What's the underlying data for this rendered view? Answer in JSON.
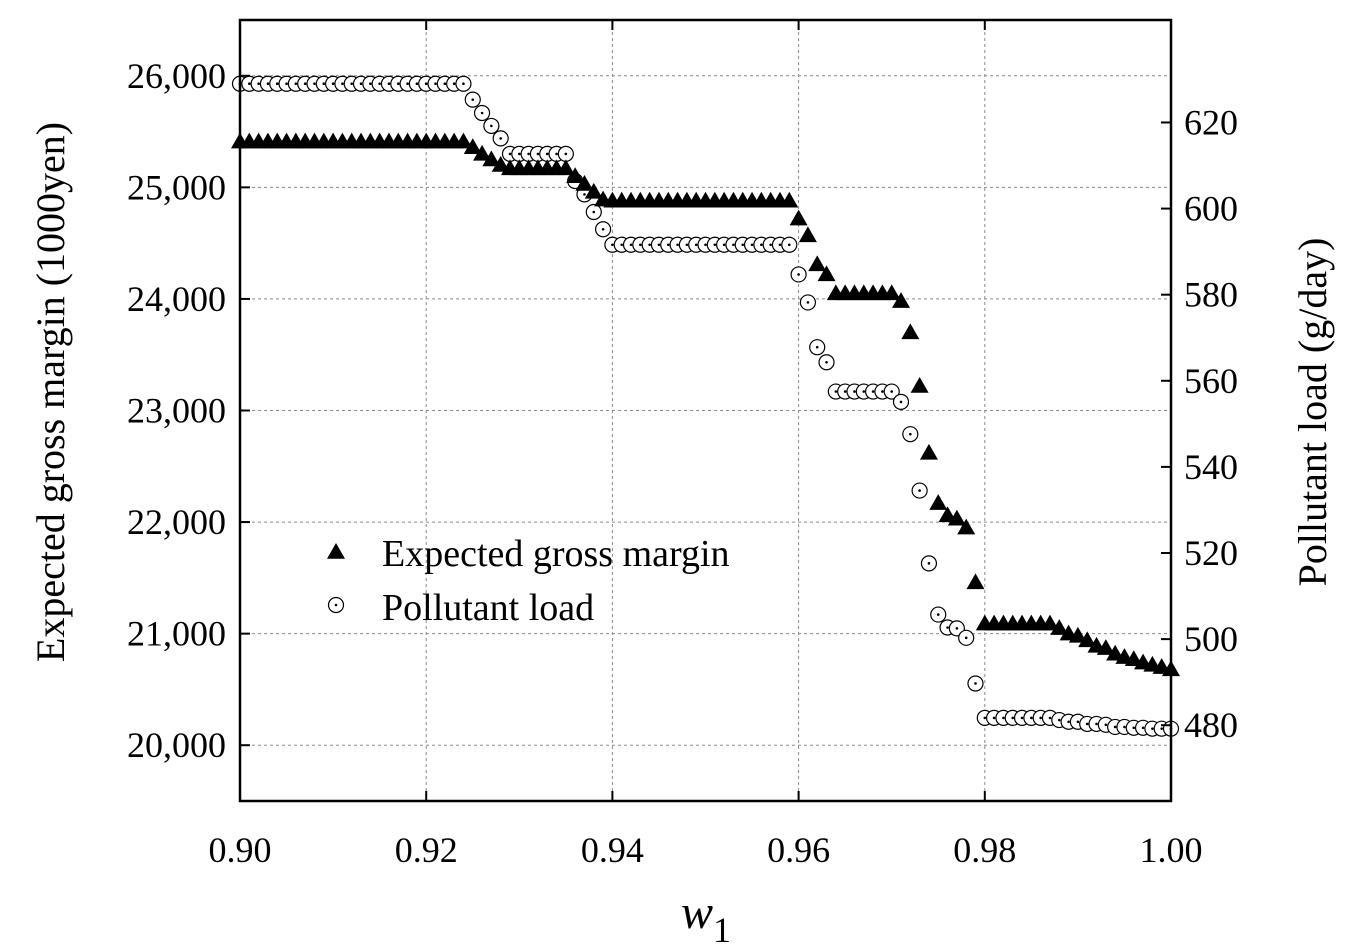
{
  "chart_data": {
    "type": "scatter",
    "xlabel": "w",
    "xlabel_subscript": "1",
    "ylabel_left": "Expected gross margin (1000yen)",
    "ylabel_right": "Pollutant load (g/day)",
    "xlim": [
      0.9,
      1.0
    ],
    "ylim_left": [
      19500,
      26500
    ],
    "ylim_right": [
      462.4,
      643.8
    ],
    "x_ticks": [
      0.9,
      0.92,
      0.94,
      0.96,
      0.98,
      1.0
    ],
    "x_tick_labels": [
      "0.90",
      "0.92",
      "0.94",
      "0.96",
      "0.98",
      "1.00"
    ],
    "y_left_ticks": [
      20000,
      21000,
      22000,
      23000,
      24000,
      25000,
      26000
    ],
    "y_left_tick_labels": [
      "20,000",
      "21,000",
      "22,000",
      "23,000",
      "24,000",
      "25,000",
      "26,000"
    ],
    "y_right_ticks": [
      480,
      500,
      520,
      540,
      560,
      580,
      600,
      620
    ],
    "y_right_tick_labels": [
      "480",
      "500",
      "520",
      "540",
      "560",
      "580",
      "600",
      "620"
    ],
    "grid": true,
    "legend_position": "lower-left",
    "series": [
      {
        "name": "Expected gross margin",
        "axis": "left",
        "marker": "filled-triangle",
        "color": "#000000",
        "points": [
          [
            0.9,
            25410
          ],
          [
            0.901,
            25410
          ],
          [
            0.902,
            25410
          ],
          [
            0.903,
            25410
          ],
          [
            0.904,
            25410
          ],
          [
            0.905,
            25410
          ],
          [
            0.906,
            25410
          ],
          [
            0.907,
            25410
          ],
          [
            0.908,
            25410
          ],
          [
            0.909,
            25410
          ],
          [
            0.91,
            25410
          ],
          [
            0.911,
            25410
          ],
          [
            0.912,
            25410
          ],
          [
            0.913,
            25410
          ],
          [
            0.914,
            25410
          ],
          [
            0.915,
            25410
          ],
          [
            0.916,
            25410
          ],
          [
            0.917,
            25410
          ],
          [
            0.918,
            25410
          ],
          [
            0.919,
            25410
          ],
          [
            0.92,
            25410
          ],
          [
            0.921,
            25410
          ],
          [
            0.922,
            25410
          ],
          [
            0.923,
            25410
          ],
          [
            0.924,
            25410
          ],
          [
            0.925,
            25360
          ],
          [
            0.926,
            25300
          ],
          [
            0.927,
            25250
          ],
          [
            0.928,
            25200
          ],
          [
            0.929,
            25170
          ],
          [
            0.93,
            25170
          ],
          [
            0.931,
            25170
          ],
          [
            0.932,
            25170
          ],
          [
            0.933,
            25170
          ],
          [
            0.934,
            25170
          ],
          [
            0.935,
            25170
          ],
          [
            0.936,
            25100
          ],
          [
            0.937,
            25030
          ],
          [
            0.938,
            24960
          ],
          [
            0.939,
            24890
          ],
          [
            0.94,
            24880
          ],
          [
            0.941,
            24880
          ],
          [
            0.942,
            24880
          ],
          [
            0.943,
            24880
          ],
          [
            0.944,
            24880
          ],
          [
            0.945,
            24880
          ],
          [
            0.946,
            24880
          ],
          [
            0.947,
            24880
          ],
          [
            0.948,
            24880
          ],
          [
            0.949,
            24880
          ],
          [
            0.95,
            24880
          ],
          [
            0.951,
            24880
          ],
          [
            0.952,
            24880
          ],
          [
            0.953,
            24880
          ],
          [
            0.954,
            24880
          ],
          [
            0.955,
            24880
          ],
          [
            0.956,
            24880
          ],
          [
            0.957,
            24880
          ],
          [
            0.958,
            24880
          ],
          [
            0.959,
            24880
          ],
          [
            0.96,
            24720
          ],
          [
            0.961,
            24570
          ],
          [
            0.962,
            24310
          ],
          [
            0.963,
            24220
          ],
          [
            0.964,
            24050
          ],
          [
            0.965,
            24050
          ],
          [
            0.966,
            24050
          ],
          [
            0.967,
            24050
          ],
          [
            0.968,
            24050
          ],
          [
            0.969,
            24050
          ],
          [
            0.97,
            24050
          ],
          [
            0.971,
            23980
          ],
          [
            0.972,
            23700
          ],
          [
            0.973,
            23220
          ],
          [
            0.974,
            22620
          ],
          [
            0.975,
            22170
          ],
          [
            0.976,
            22060
          ],
          [
            0.977,
            22030
          ],
          [
            0.978,
            21950
          ],
          [
            0.979,
            21460
          ],
          [
            0.98,
            21090
          ],
          [
            0.981,
            21090
          ],
          [
            0.982,
            21090
          ],
          [
            0.983,
            21090
          ],
          [
            0.984,
            21090
          ],
          [
            0.985,
            21090
          ],
          [
            0.986,
            21090
          ],
          [
            0.987,
            21090
          ],
          [
            0.988,
            21050
          ],
          [
            0.989,
            21000
          ],
          [
            0.99,
            20980
          ],
          [
            0.991,
            20940
          ],
          [
            0.992,
            20890
          ],
          [
            0.993,
            20870
          ],
          [
            0.994,
            20820
          ],
          [
            0.995,
            20790
          ],
          [
            0.996,
            20770
          ],
          [
            0.997,
            20740
          ],
          [
            0.998,
            20720
          ],
          [
            0.999,
            20700
          ],
          [
            1.0,
            20680
          ]
        ]
      },
      {
        "name": "Pollutant load",
        "axis": "right",
        "marker": "dotted-circle",
        "color": "#000000",
        "points": [
          [
            0.9,
            629.0
          ],
          [
            0.901,
            629.0
          ],
          [
            0.902,
            629.0
          ],
          [
            0.903,
            629.0
          ],
          [
            0.904,
            629.0
          ],
          [
            0.905,
            629.0
          ],
          [
            0.906,
            629.0
          ],
          [
            0.907,
            629.0
          ],
          [
            0.908,
            629.0
          ],
          [
            0.909,
            629.0
          ],
          [
            0.91,
            629.0
          ],
          [
            0.911,
            629.0
          ],
          [
            0.912,
            629.0
          ],
          [
            0.913,
            629.0
          ],
          [
            0.914,
            629.0
          ],
          [
            0.915,
            629.0
          ],
          [
            0.916,
            629.0
          ],
          [
            0.917,
            629.0
          ],
          [
            0.918,
            629.0
          ],
          [
            0.919,
            629.0
          ],
          [
            0.92,
            629.0
          ],
          [
            0.921,
            629.0
          ],
          [
            0.922,
            629.0
          ],
          [
            0.923,
            629.0
          ],
          [
            0.924,
            629.0
          ],
          [
            0.925,
            625.3
          ],
          [
            0.926,
            622.2
          ],
          [
            0.927,
            619.2
          ],
          [
            0.928,
            616.3
          ],
          [
            0.929,
            612.7
          ],
          [
            0.93,
            612.7
          ],
          [
            0.931,
            612.7
          ],
          [
            0.932,
            612.7
          ],
          [
            0.933,
            612.7
          ],
          [
            0.934,
            612.7
          ],
          [
            0.935,
            612.7
          ],
          [
            0.936,
            606.4
          ],
          [
            0.937,
            603.3
          ],
          [
            0.938,
            599.2
          ],
          [
            0.939,
            595.2
          ],
          [
            0.94,
            591.6
          ],
          [
            0.941,
            591.6
          ],
          [
            0.942,
            591.6
          ],
          [
            0.943,
            591.6
          ],
          [
            0.944,
            591.6
          ],
          [
            0.945,
            591.6
          ],
          [
            0.946,
            591.6
          ],
          [
            0.947,
            591.6
          ],
          [
            0.948,
            591.6
          ],
          [
            0.949,
            591.6
          ],
          [
            0.95,
            591.6
          ],
          [
            0.951,
            591.6
          ],
          [
            0.952,
            591.6
          ],
          [
            0.953,
            591.6
          ],
          [
            0.954,
            591.6
          ],
          [
            0.955,
            591.6
          ],
          [
            0.956,
            591.6
          ],
          [
            0.957,
            591.6
          ],
          [
            0.958,
            591.6
          ],
          [
            0.959,
            591.6
          ],
          [
            0.96,
            584.7
          ],
          [
            0.961,
            578.2
          ],
          [
            0.962,
            567.8
          ],
          [
            0.963,
            564.3
          ],
          [
            0.964,
            557.5
          ],
          [
            0.965,
            557.5
          ],
          [
            0.966,
            557.5
          ],
          [
            0.967,
            557.5
          ],
          [
            0.968,
            557.5
          ],
          [
            0.969,
            557.5
          ],
          [
            0.97,
            557.5
          ],
          [
            0.971,
            555.1
          ],
          [
            0.972,
            547.6
          ],
          [
            0.973,
            534.5
          ],
          [
            0.974,
            517.6
          ],
          [
            0.975,
            505.7
          ],
          [
            0.976,
            502.7
          ],
          [
            0.977,
            502.5
          ],
          [
            0.978,
            500.3
          ],
          [
            0.979,
            489.7
          ],
          [
            0.98,
            481.7
          ],
          [
            0.981,
            481.7
          ],
          [
            0.982,
            481.7
          ],
          [
            0.983,
            481.7
          ],
          [
            0.984,
            481.7
          ],
          [
            0.985,
            481.7
          ],
          [
            0.986,
            481.7
          ],
          [
            0.987,
            481.7
          ],
          [
            0.988,
            481.2
          ],
          [
            0.989,
            480.8
          ],
          [
            0.99,
            480.8
          ],
          [
            0.991,
            480.3
          ],
          [
            0.992,
            480.3
          ],
          [
            0.993,
            480.1
          ],
          [
            0.994,
            479.6
          ],
          [
            0.995,
            479.6
          ],
          [
            0.996,
            479.4
          ],
          [
            0.997,
            479.4
          ],
          [
            0.998,
            479.2
          ],
          [
            0.999,
            479.2
          ],
          [
            1.0,
            479.2
          ]
        ]
      }
    ]
  }
}
